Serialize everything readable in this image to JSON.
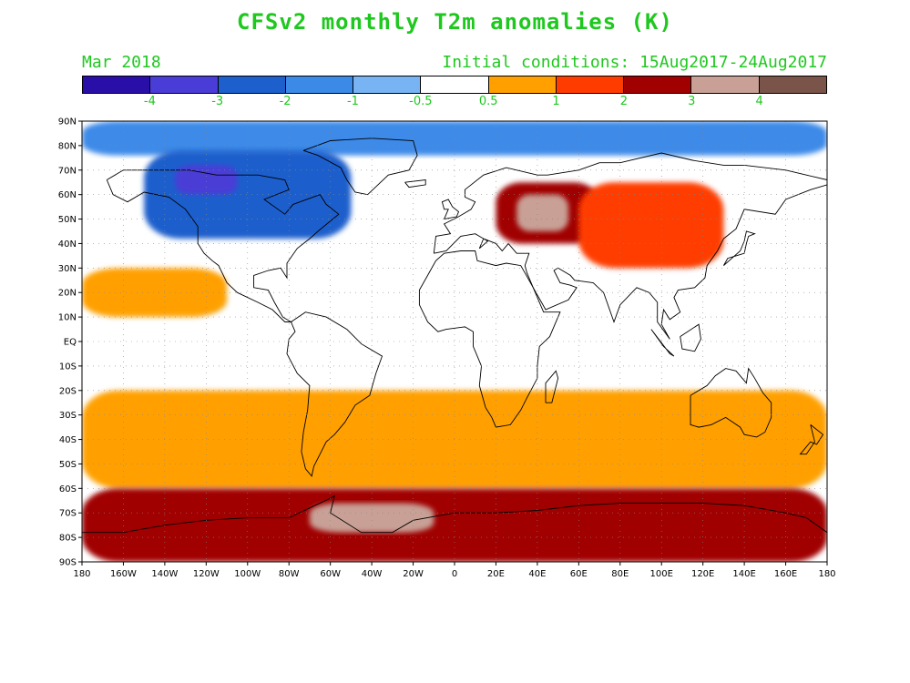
{
  "title": "CFSv2 monthly T2m anomalies (K)",
  "subtitle_left": "Mar 2018",
  "subtitle_right": "Initial conditions: 15Aug2017-24Aug2017",
  "colors": {
    "text_green": "#1fc81f",
    "ocean_land_neutral": "#ffffff",
    "coastline": "#000000"
  },
  "colorbar": {
    "colors": [
      "#2a0ea8",
      "#4a3cd6",
      "#1d5fcc",
      "#3c8ae8",
      "#78b4f4",
      "#ffffff",
      "#ffa000",
      "#ff3c00",
      "#a00000",
      "#c8a096",
      "#7a5448"
    ],
    "labels": [
      "-4",
      "-3",
      "-2",
      "-1",
      "-0.5",
      "0.5",
      "1",
      "2",
      "3",
      "4"
    ]
  },
  "map_data": {
    "projection": "equirectangular",
    "lon_range": [
      -180,
      180
    ],
    "lat_range": [
      -90,
      90
    ],
    "lat_ticks": [
      "90N",
      "80N",
      "70N",
      "60N",
      "50N",
      "40N",
      "30N",
      "20N",
      "10N",
      "EQ",
      "10S",
      "20S",
      "30S",
      "40S",
      "50S",
      "60S",
      "70S",
      "80S",
      "90S"
    ],
    "lon_ticks": [
      "180",
      "160W",
      "140W",
      "120W",
      "100W",
      "80W",
      "60W",
      "40W",
      "20W",
      "0",
      "20E",
      "40E",
      "60E",
      "80E",
      "100E",
      "120E",
      "140E",
      "160E",
      "180"
    ],
    "anomaly_regions": [
      {
        "name": "arctic-blue-band",
        "lon": [
          -180,
          180
        ],
        "lat": [
          76,
          90
        ],
        "value": -1
      },
      {
        "name": "north-america-cold",
        "lon": [
          -150,
          -50
        ],
        "lat": [
          42,
          78
        ],
        "value": -2
      },
      {
        "name": "canada-core-cold",
        "lon": [
          -135,
          -105
        ],
        "lat": [
          60,
          72
        ],
        "value": -3
      },
      {
        "name": "europe-russia-warm",
        "lon": [
          20,
          70
        ],
        "lat": [
          40,
          65
        ],
        "value": 3
      },
      {
        "name": "europe-core-warm",
        "lon": [
          30,
          55
        ],
        "lat": [
          45,
          60
        ],
        "value": 4
      },
      {
        "name": "asia-warm",
        "lon": [
          60,
          130
        ],
        "lat": [
          30,
          65
        ],
        "value": 2
      },
      {
        "name": "tropical-pacific-warm",
        "lon": [
          -180,
          -110
        ],
        "lat": [
          10,
          30
        ],
        "value": 1
      },
      {
        "name": "southern-ocean-warm",
        "lon": [
          -180,
          180
        ],
        "lat": [
          -60,
          -20
        ],
        "value": 1
      },
      {
        "name": "antarctic-warm",
        "lon": [
          -180,
          180
        ],
        "lat": [
          -90,
          -60
        ],
        "value": 3
      },
      {
        "name": "antarctic-core",
        "lon": [
          -70,
          -10
        ],
        "lat": [
          -78,
          -66
        ],
        "value": 4
      }
    ]
  }
}
